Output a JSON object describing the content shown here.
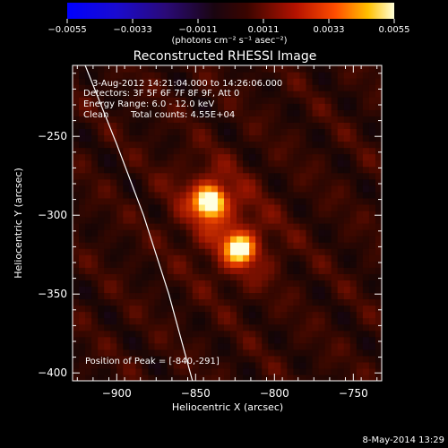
{
  "colorbar": {
    "min": -0.0055,
    "max": 0.0055,
    "tick_labels": [
      "−0.0055",
      "−0.0033",
      "−0.0011",
      "0.0011",
      "0.0033",
      "0.0055"
    ],
    "unit_label": "(photons cm⁻² s⁻¹ asec⁻²)"
  },
  "chart_data": {
    "type": "heatmap",
    "title": "Reconstructed RHESSI Image",
    "xlabel": "Heliocentric X (arcsec)",
    "ylabel": "Heliocentric Y (arcsec)",
    "xlim": [
      -928,
      -732
    ],
    "ylim": [
      -405,
      -205
    ],
    "x_ticks": [
      -900,
      -850,
      -800,
      -750
    ],
    "x_tick_labels": [
      "−900",
      "−850",
      "−800",
      "−750"
    ],
    "y_ticks": [
      -250,
      -300,
      -350,
      -400
    ],
    "y_tick_labels": [
      "−250",
      "−300",
      "−350",
      "−400"
    ],
    "sources": [
      {
        "x": -841,
        "y": -291,
        "amplitude": 0.0055
      },
      {
        "x": -822,
        "y": -321,
        "amplitude": 0.0045
      }
    ],
    "limb_curve": [
      [
        -920,
        -205
      ],
      [
        -900,
        -255
      ],
      [
        -883,
        -300
      ],
      [
        -867,
        -350
      ],
      [
        -852,
        -405
      ]
    ],
    "annotations": {
      "time_range": "3-Aug-2012 14:21:04.000 to 14:26:06.000",
      "detectors": "Detectors: 3F 5F 6F 7F 8F 9F, Att 0",
      "energy_range": "Energy Range: 6.0 - 12.0 keV",
      "method": "Clean",
      "total_counts": "Total counts: 4.55E+04",
      "peak_position": "Position of Peak = [-840,-291]"
    }
  },
  "footer": {
    "timestamp": "8-May-2014 13:29"
  }
}
